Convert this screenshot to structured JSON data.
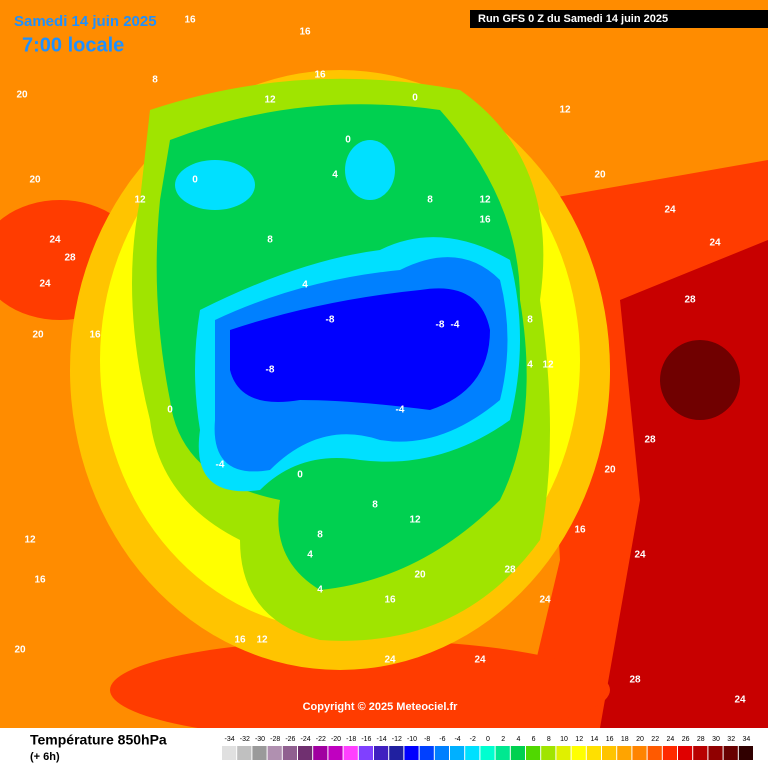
{
  "header": {
    "date": "Samedi 14 juin 2025",
    "time": "7:00 locale",
    "run": "Run GFS 0 Z du Samedi 14 juin 2025"
  },
  "copyright": "Copyright © 2025 Meteociel.fr",
  "legend": {
    "title": "Température 850hPa",
    "subtitle": "(+ 6h)",
    "ticks": [
      -34,
      -32,
      -30,
      -28,
      -26,
      -24,
      -22,
      -20,
      -18,
      -16,
      -14,
      -12,
      -10,
      -8,
      -6,
      -4,
      -2,
      0,
      2,
      4,
      6,
      8,
      10,
      12,
      14,
      16,
      18,
      20,
      22,
      24,
      26,
      28,
      30,
      32,
      34
    ],
    "colors": [
      "#e0e0e0",
      "#c0c0c0",
      "#9a9a9a",
      "#b090b0",
      "#906090",
      "#703070",
      "#a000a0",
      "#c000c0",
      "#ff40ff",
      "#8040ff",
      "#4020c0",
      "#2020a0",
      "#0000ff",
      "#0040ff",
      "#0080ff",
      "#00b0ff",
      "#00e0ff",
      "#00ffd0",
      "#00e890",
      "#00d050",
      "#50d800",
      "#a0e400",
      "#e0f000",
      "#ffff00",
      "#ffe000",
      "#ffc400",
      "#ffa400",
      "#ff8400",
      "#ff5a00",
      "#ff2a00",
      "#e00000",
      "#b80000",
      "#900000",
      "#680000",
      "#300000"
    ]
  },
  "contour_labels": [
    "16",
    "16",
    "12",
    "8",
    "16",
    "12",
    "20",
    "20",
    "24",
    "28",
    "24",
    "20",
    "16",
    "12",
    "8",
    "4",
    "0",
    "0",
    "0",
    "4",
    "8",
    "12",
    "16",
    "20",
    "24",
    "28",
    "24",
    "28",
    "24",
    "20",
    "16",
    "12",
    "8",
    "4",
    "0",
    "-4",
    "-8",
    "-8",
    "-8",
    "-4",
    "-4",
    "0",
    "4",
    "8",
    "12",
    "16",
    "20",
    "24",
    "28",
    "24",
    "16",
    "12",
    "8",
    "4",
    "20",
    "24",
    "28",
    "24",
    "16",
    "12"
  ]
}
